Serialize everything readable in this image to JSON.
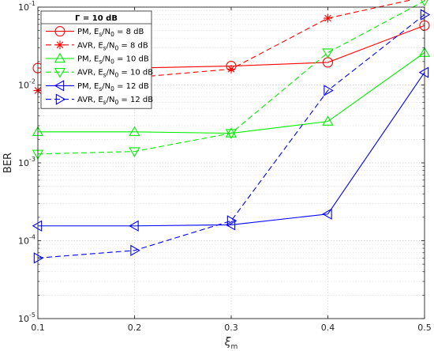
{
  "chart_data": {
    "type": "line",
    "xlabel": "ξ",
    "xlabel_sub": "m",
    "ylabel": "BER",
    "y_scale": "log",
    "xlim": [
      0.1,
      0.5
    ],
    "ylim": [
      1e-05,
      0.1
    ],
    "grid": true,
    "x_ticks": [
      "0.1",
      "0.2",
      "0.3",
      "0.4",
      "0.5"
    ],
    "y_ticks": [
      {
        "base": "10",
        "exp": "-1",
        "value": 0.1
      },
      {
        "base": "10",
        "exp": "-2",
        "value": 0.01
      },
      {
        "base": "10",
        "exp": "-3",
        "value": 0.001
      },
      {
        "base": "10",
        "exp": "-4",
        "value": 0.0001
      },
      {
        "base": "10",
        "exp": "-5",
        "value": 1e-05
      }
    ],
    "legend": {
      "placement": "top-left",
      "title": "Γ = 10 dB"
    },
    "x": [
      0.1,
      0.2,
      0.3,
      0.4,
      0.5
    ],
    "series": [
      {
        "name_pre": "PM, E",
        "name_sub1": "s",
        "name_mid": "/N",
        "name_sub2": "0",
        "name_post": " = 8 dB",
        "color": "#ff0000",
        "dash": "solid",
        "marker": "circle",
        "values": [
          0.0165,
          0.0165,
          0.0175,
          0.0195,
          0.058
        ]
      },
      {
        "name_pre": "AVR, E",
        "name_sub1": "s",
        "name_mid": "/N",
        "name_sub2": "0",
        "name_post": " = 8 dB",
        "color": "#ff0000",
        "dash": "dashed",
        "marker": "asterisk",
        "values": [
          0.0085,
          0.0125,
          0.016,
          0.072,
          0.135
        ]
      },
      {
        "name_pre": "PM, E",
        "name_sub1": "s",
        "name_mid": "/N",
        "name_sub2": "0",
        "name_post": " = 10 dB",
        "color": "#00ee00",
        "dash": "solid",
        "marker": "triangle-up",
        "values": [
          0.0025,
          0.0025,
          0.0024,
          0.0034,
          0.026
        ]
      },
      {
        "name_pre": "AVR, E",
        "name_sub1": "s",
        "name_mid": "/N",
        "name_sub2": "0",
        "name_post": " = 10 dB",
        "color": "#00ee00",
        "dash": "dashed",
        "marker": "triangle-down",
        "values": [
          0.0013,
          0.0014,
          0.0024,
          0.026,
          0.12
        ]
      },
      {
        "name_pre": "PM, E",
        "name_sub1": "s",
        "name_mid": "/N",
        "name_sub2": "0",
        "name_post": " = 12 dB",
        "color": "#0000ff",
        "dash": "solid",
        "marker": "triangle-left",
        "values": [
          0.000155,
          0.000155,
          0.00016,
          0.00022,
          0.0145
        ]
      },
      {
        "name_pre": "AVR, E",
        "name_sub1": "s",
        "name_mid": "/N",
        "name_sub2": "0",
        "name_post": " = 12 dB",
        "color": "#0000ff",
        "dash": "dashed",
        "marker": "triangle-right",
        "values": [
          6e-05,
          7.5e-05,
          0.00018,
          0.0085,
          0.08
        ]
      }
    ]
  }
}
